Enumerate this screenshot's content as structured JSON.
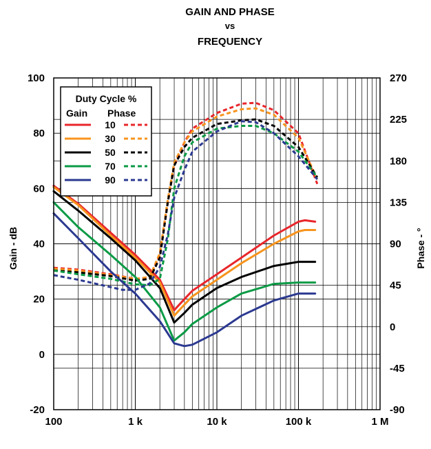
{
  "chart_data": {
    "type": "line",
    "title": [
      "GAIN AND PHASE",
      "vs",
      "FREQUENCY"
    ],
    "xlabel": "",
    "ylabel_left": "Gain - dB",
    "ylabel_right": "Phase - °",
    "x_scale": "log",
    "xlim": [
      100,
      1000000
    ],
    "ylim_left": [
      -20,
      100
    ],
    "ylim_right": [
      -90,
      270
    ],
    "grid": true,
    "x_ticks": [
      {
        "value": 100,
        "label": "100"
      },
      {
        "value": 1000,
        "label": "1 k"
      },
      {
        "value": 10000,
        "label": "10 k"
      },
      {
        "value": 100000,
        "label": "100 k"
      },
      {
        "value": 1000000,
        "label": "1 M"
      }
    ],
    "y_ticks_left": [
      "100",
      "80",
      "60",
      "40",
      "20",
      "0",
      "-20"
    ],
    "y_ticks_right": [
      "270",
      "225",
      "180",
      "135",
      "90",
      "45",
      "0",
      "-45",
      "-90"
    ],
    "legend": {
      "title": "Duty Cycle %",
      "col_gain": "Gain",
      "col_phase": "Phase",
      "placement": "top-left"
    },
    "series": [
      {
        "name": "10",
        "color": "#e8262b",
        "gain": [
          [
            100,
            61
          ],
          [
            200,
            54.5
          ],
          [
            500,
            44
          ],
          [
            1000,
            36
          ],
          [
            2000,
            27
          ],
          [
            3000,
            16
          ],
          [
            4000,
            20
          ],
          [
            5000,
            23
          ],
          [
            10000,
            29
          ],
          [
            20000,
            35
          ],
          [
            50000,
            43
          ],
          [
            100000,
            48
          ],
          [
            120000,
            48.5
          ],
          [
            160000,
            48
          ]
        ],
        "phase": [
          [
            100,
            64
          ],
          [
            200,
            62
          ],
          [
            500,
            57
          ],
          [
            1000,
            52
          ],
          [
            1500,
            53
          ],
          [
            2000,
            78
          ],
          [
            2500,
            135
          ],
          [
            3000,
            175
          ],
          [
            4000,
            200
          ],
          [
            5000,
            215
          ],
          [
            10000,
            232
          ],
          [
            20000,
            242
          ],
          [
            30000,
            243
          ],
          [
            50000,
            235
          ],
          [
            100000,
            210
          ],
          [
            170000,
            155
          ]
        ]
      },
      {
        "name": "30",
        "color": "#f7941d",
        "gain": [
          [
            100,
            60.5
          ],
          [
            200,
            54
          ],
          [
            500,
            43
          ],
          [
            1000,
            35
          ],
          [
            2000,
            26
          ],
          [
            3000,
            14
          ],
          [
            4000,
            18
          ],
          [
            5000,
            21
          ],
          [
            10000,
            27
          ],
          [
            20000,
            33
          ],
          [
            50000,
            40
          ],
          [
            100000,
            44.5
          ],
          [
            120000,
            45
          ],
          [
            160000,
            45
          ]
        ],
        "phase": [
          [
            100,
            63
          ],
          [
            200,
            61
          ],
          [
            500,
            56
          ],
          [
            1000,
            52
          ],
          [
            1500,
            54
          ],
          [
            2000,
            80
          ],
          [
            2500,
            138
          ],
          [
            3000,
            178
          ],
          [
            4000,
            200
          ],
          [
            5000,
            212
          ],
          [
            10000,
            228
          ],
          [
            20000,
            236
          ],
          [
            30000,
            237
          ],
          [
            50000,
            230
          ],
          [
            100000,
            205
          ],
          [
            170000,
            160
          ]
        ]
      },
      {
        "name": "50",
        "color": "#000000",
        "gain": [
          [
            100,
            59
          ],
          [
            200,
            52
          ],
          [
            500,
            42
          ],
          [
            1000,
            34
          ],
          [
            2000,
            24
          ],
          [
            3000,
            11.5
          ],
          [
            4000,
            15
          ],
          [
            5000,
            18
          ],
          [
            10000,
            24
          ],
          [
            20000,
            28
          ],
          [
            50000,
            32
          ],
          [
            100000,
            33.5
          ],
          [
            160000,
            33.5
          ]
        ],
        "phase": [
          [
            100,
            61
          ],
          [
            200,
            59
          ],
          [
            500,
            55
          ],
          [
            1000,
            50
          ],
          [
            1500,
            52
          ],
          [
            2000,
            75
          ],
          [
            2500,
            135
          ],
          [
            3000,
            175
          ],
          [
            4000,
            195
          ],
          [
            5000,
            205
          ],
          [
            10000,
            220
          ],
          [
            20000,
            224
          ],
          [
            30000,
            225
          ],
          [
            50000,
            218
          ],
          [
            100000,
            195
          ],
          [
            170000,
            162
          ]
        ]
      },
      {
        "name": "70",
        "color": "#0a9a45",
        "gain": [
          [
            100,
            55
          ],
          [
            200,
            46
          ],
          [
            500,
            36
          ],
          [
            1000,
            28
          ],
          [
            2000,
            17
          ],
          [
            3000,
            5
          ],
          [
            4000,
            8
          ],
          [
            5000,
            11
          ],
          [
            10000,
            17
          ],
          [
            20000,
            22
          ],
          [
            50000,
            25.5
          ],
          [
            100000,
            26
          ],
          [
            160000,
            26
          ]
        ],
        "phase": [
          [
            100,
            61
          ],
          [
            200,
            57
          ],
          [
            500,
            52
          ],
          [
            1000,
            46
          ],
          [
            1500,
            45
          ],
          [
            2000,
            52
          ],
          [
            2500,
            95
          ],
          [
            3000,
            150
          ],
          [
            4000,
            185
          ],
          [
            5000,
            200
          ],
          [
            10000,
            215
          ],
          [
            20000,
            218
          ],
          [
            30000,
            218
          ],
          [
            50000,
            210
          ],
          [
            100000,
            190
          ],
          [
            170000,
            162
          ]
        ]
      },
      {
        "name": "90",
        "color": "#2b3990",
        "gain": [
          [
            100,
            51
          ],
          [
            200,
            42
          ],
          [
            500,
            30
          ],
          [
            1000,
            22
          ],
          [
            2000,
            12
          ],
          [
            3000,
            4
          ],
          [
            4000,
            3
          ],
          [
            5000,
            3.5
          ],
          [
            10000,
            8
          ],
          [
            20000,
            14
          ],
          [
            50000,
            19.5
          ],
          [
            100000,
            22
          ],
          [
            160000,
            22
          ]
        ],
        "phase": [
          [
            100,
            56
          ],
          [
            200,
            51
          ],
          [
            500,
            43
          ],
          [
            700,
            40
          ],
          [
            1000,
            40
          ],
          [
            1500,
            47
          ],
          [
            2000,
            65
          ],
          [
            2500,
            100
          ],
          [
            3000,
            140
          ],
          [
            4000,
            170
          ],
          [
            5000,
            190
          ],
          [
            10000,
            212
          ],
          [
            20000,
            223
          ],
          [
            30000,
            222
          ],
          [
            50000,
            210
          ],
          [
            100000,
            185
          ],
          [
            170000,
            160
          ]
        ]
      }
    ]
  }
}
